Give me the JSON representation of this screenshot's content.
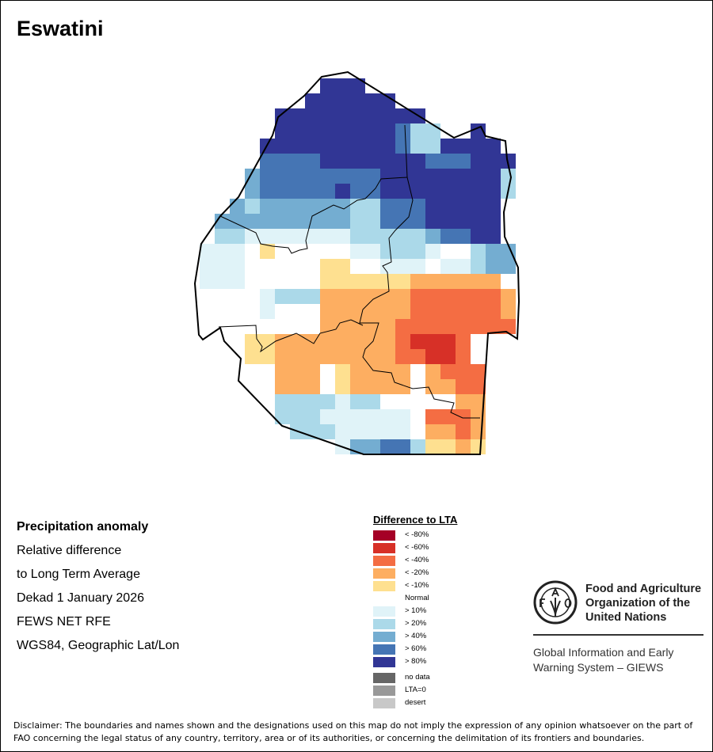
{
  "title": "Eswatini",
  "info": [
    "Precipitation anomaly",
    "Relative difference",
    "to Long Term Average",
    "Dekad 1 January 2026",
    "FEWS NET RFE",
    "WGS84, Geographic Lat/Lon"
  ],
  "legend": {
    "title": "Difference to LTA",
    "items": [
      {
        "label": "< -80%",
        "color": "#a50026",
        "code": "X"
      },
      {
        "label": "< -60%",
        "color": "#d73027",
        "code": "D"
      },
      {
        "label": "< -40%",
        "color": "#f46d43",
        "code": "R"
      },
      {
        "label": "< -20%",
        "color": "#fdae61",
        "code": "O"
      },
      {
        "label": "< -10%",
        "color": "#fee090",
        "code": "Y"
      },
      {
        "label": "Normal",
        "color": "#ffffff",
        "code": "."
      },
      {
        "label": "> 10%",
        "color": "#e0f3f8",
        "code": "P"
      },
      {
        "label": "> 20%",
        "color": "#abd9e9",
        "code": "L"
      },
      {
        "label": "> 40%",
        "color": "#74add1",
        "code": "M"
      },
      {
        "label": "> 60%",
        "color": "#4575b4",
        "code": "B"
      },
      {
        "label": "> 80%",
        "color": "#313695",
        "code": "N"
      }
    ],
    "extra": [
      {
        "label": "no data",
        "color": "#666666"
      },
      {
        "label": "LTA=0",
        "color": "#999999"
      },
      {
        "label": "desert",
        "color": "#c8c8c8"
      }
    ]
  },
  "logo": {
    "org_name": [
      "Food and Agriculture",
      "Organization of the",
      "United Nations"
    ],
    "emblem_text": "FAO FIAT PANIS",
    "system": [
      "Global Information and Early",
      "Warning System – GIEWS"
    ]
  },
  "disclaimer": "Disclaimer: The boundaries and names shown and the designations used on this map do not imply the expression of any opinion whatsoever on the part of FAO concerning the legal status of any country, territory, area or of its authorities, or concerning the delimitation of its frontiers and boundaries.",
  "raster": [
    "........NNN...........",
    ".......NNNNNN.........",
    ".....NNNNNNNNNN.......",
    ".....NNNNNNNNBLL..N...",
    "....NNNNNNNNNBLLNNNN..",
    "....BBBBNNNNNNNBBBNNN.",
    "...MBBBBBBBBNNNNNNNNL.",
    "...MBBBBBNBBNNNNNNNNL.",
    "..MLMMMMMMLLBBBNNNNN..",
    ".MMMMMMMMMLLBBBNNNNN..",
    ".LLPPPPPPPLLLLLMBBNN..",
    "PPP.Y.....PPLLLP..LMM.",
    "PPP.....YY..PPP.PPLMM.",
    "PPP.....YYYYYYOOOOOO..",
    "....PLLLOOOOOORRRRRRO.",
    "....P...OOOOOORRRRRRO.",
    "........OOOOORRRRRRRR.",
    "...YYOOOOOOOORDDDR....",
    "...YYOOOOOOOORRDDR....",
    ".....OOO.YOOOO.ORRR...",
    ".....OOO.YOOOO.OORR...",
    ".....LLLLPLL.....OO...",
    ".....LLLPPPPPP.RRRO...",
    "......LLLPPPPP.OORO...",
    ".........PMMBBLYYOY..."
  ]
}
